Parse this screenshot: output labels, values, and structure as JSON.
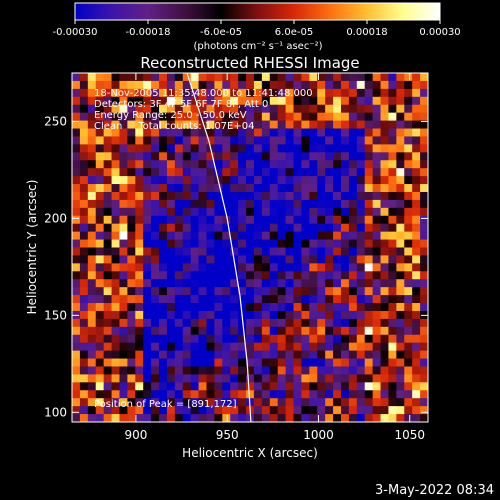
{
  "chart_data": {
    "type": "heatmap",
    "title": "Reconstructed RHESSI Image",
    "xlabel": "Heliocentric X (arcsec)",
    "ylabel": "Heliocentric Y (arcsec)",
    "xlim": [
      865,
      1060
    ],
    "ylim": [
      95,
      275
    ],
    "xticks": [
      900,
      950,
      1000,
      1050
    ],
    "xtick_labels": [
      "900",
      "950",
      "1000",
      "1050"
    ],
    "yticks": [
      100,
      150,
      200,
      250
    ],
    "ytick_labels": [
      "100",
      "150",
      "200",
      "250"
    ],
    "colorbar": {
      "range": [
        -0.0003,
        0.0003
      ],
      "tick_values": [
        -0.0003,
        -0.00018,
        -6e-05,
        6e-05,
        0.00018,
        0.0003
      ],
      "tick_labels": [
        "-0.00030",
        "-0.00018",
        "-6.0e-05",
        "6.0e-05",
        "0.00018",
        "0.00030"
      ],
      "unit_label": "(photons cm⁻² s⁻¹ asec⁻²)",
      "colors": [
        "#0000c8",
        "#3c14aa",
        "#602085",
        "#401040",
        "#000000",
        "#801010",
        "#d82808",
        "#ff7010",
        "#ffc030",
        "#ffff90",
        "#ffffff"
      ]
    },
    "annotations": [
      "18-Nov-2005 11:35:48.000 to 11:41:48.000",
      "Detectors: 3F 4F 5F 6F 7F 8F, Att 0",
      "Energy Range: 25.0 - 50.0 keV",
      "Clean     Total counts: 1.07E+04"
    ],
    "peak_label": "Position of Peak = [891,172]",
    "peak_position": [
      891,
      172
    ],
    "limb_curve": [
      [
        928,
        275
      ],
      [
        940,
        240
      ],
      [
        950,
        200
      ],
      [
        957,
        160
      ],
      [
        961,
        125
      ],
      [
        963,
        95
      ]
    ],
    "footer_date": "3-May-2022 08:34",
    "grid": false
  }
}
